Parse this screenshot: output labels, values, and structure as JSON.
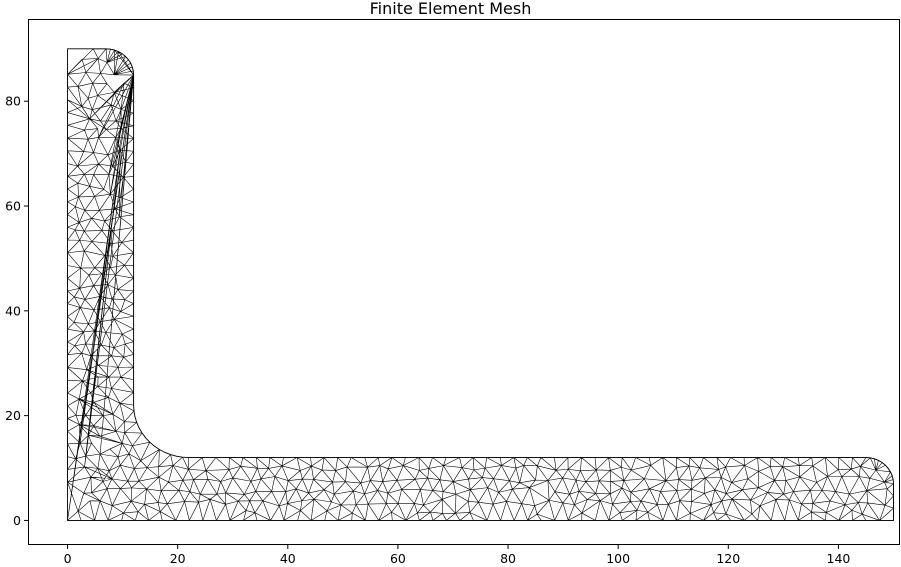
{
  "figure": {
    "title": "Finite Element Mesh"
  },
  "chart_data": {
    "type": "mesh",
    "title": "Finite Element Mesh",
    "xlabel": "",
    "ylabel": "",
    "xlim": [
      -7,
      151
    ],
    "ylim": [
      -4.5,
      95.5
    ],
    "xticks": [
      0,
      20,
      40,
      60,
      80,
      100,
      120,
      140
    ],
    "yticks": [
      0,
      20,
      40,
      60,
      80
    ],
    "grid": false,
    "legend": "none",
    "element_type": "triangle",
    "geometry": {
      "shape": "L-shaped section with rounded corners",
      "vertical_leg": {
        "x": [
          0,
          12
        ],
        "y": [
          0,
          90
        ]
      },
      "horizontal_leg": {
        "x": [
          0,
          150
        ],
        "y": [
          0,
          12
        ]
      },
      "inner_fillet": {
        "center": [
          22,
          22
        ],
        "radius": 10
      },
      "top_corner_fillet": {
        "center": [
          7,
          85
        ],
        "radius": 5
      },
      "right_corner_fillet": {
        "center": [
          145,
          7
        ],
        "radius": 5
      }
    },
    "line_color": "#000000"
  }
}
